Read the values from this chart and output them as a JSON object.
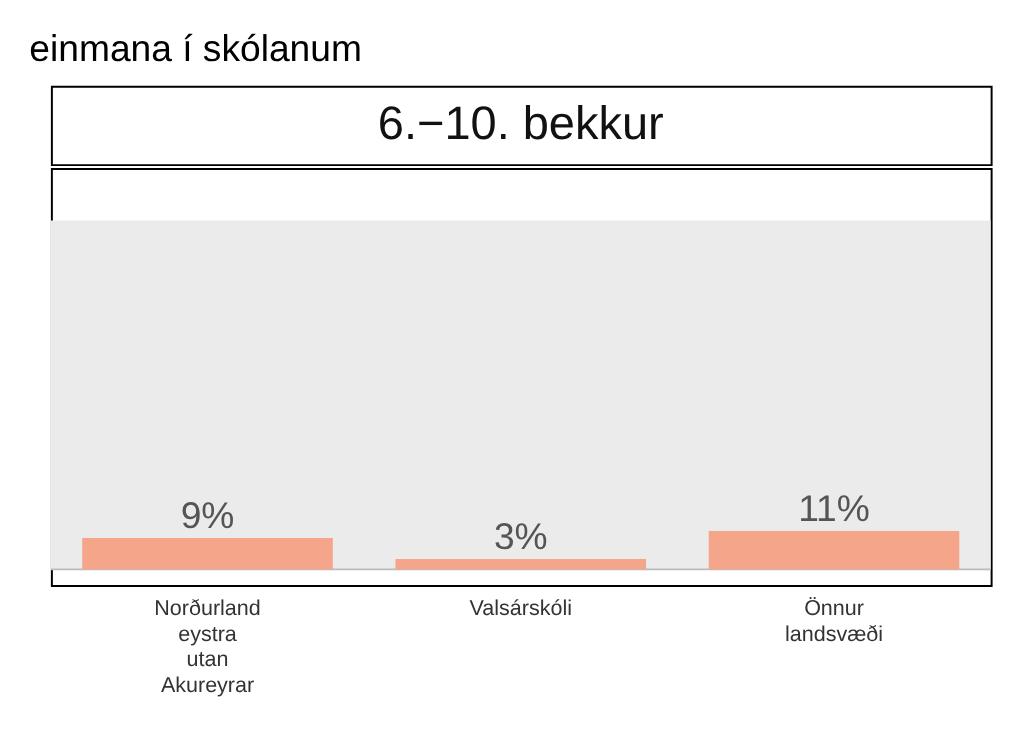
{
  "chart_data": {
    "type": "bar",
    "title": "einmana í skólanum",
    "subtitle": "6.−10. bekkur",
    "categories": [
      "Norðurland eystra utan Akureyrar",
      "Valsárskóli",
      "Önnur landsvæði"
    ],
    "values": [
      9,
      3,
      11
    ],
    "color": "#f4a58a",
    "data_labels": true,
    "value_labels": [
      "9%",
      "3%",
      "11%"
    ],
    "ylim": [
      -4.5,
      115
    ],
    "bands": [
      {
        "axis": "y",
        "from": 0,
        "to": 100,
        "color": "#ebebeb"
      }
    ],
    "ref_lines": [
      {
        "axis": "y",
        "value": 0,
        "color": "#bbbbbb"
      }
    ],
    "legend": false
  }
}
